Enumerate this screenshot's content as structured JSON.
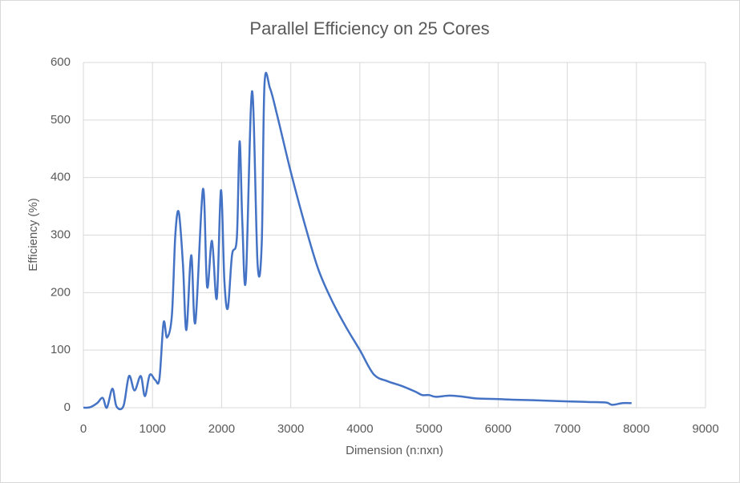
{
  "chart_data": {
    "type": "line",
    "title": "Parallel Efficiency on 25 Cores",
    "x_label": "Dimension (n:nxn)",
    "y_label": "Efficiency (%)",
    "color": "#4472c4",
    "grid": true,
    "smooth": true,
    "x": [
      0,
      100,
      200,
      280,
      340,
      420,
      480,
      580,
      660,
      740,
      830,
      890,
      960,
      1040,
      1100,
      1160,
      1210,
      1280,
      1330,
      1380,
      1440,
      1490,
      1560,
      1620,
      1730,
      1790,
      1860,
      1930,
      1990,
      2040,
      2090,
      2150,
      2220,
      2260,
      2300,
      2350,
      2440,
      2520,
      2580,
      2620,
      2700,
      2800,
      3000,
      3200,
      3400,
      3600,
      3800,
      4000,
      4200,
      4400,
      4600,
      4800,
      4900,
      5000,
      5100,
      5300,
      5500,
      5700,
      6000,
      6200,
      6500,
      7000,
      7300,
      7560,
      7650,
      7800,
      7930
    ],
    "values": [
      0,
      1,
      8,
      17,
      0,
      33,
      2,
      3,
      55,
      30,
      55,
      20,
      57,
      48,
      50,
      148,
      122,
      160,
      300,
      340,
      250,
      135,
      265,
      148,
      380,
      210,
      290,
      190,
      378,
      220,
      173,
      265,
      295,
      463,
      320,
      222,
      550,
      250,
      285,
      562,
      555,
      510,
      410,
      320,
      240,
      185,
      140,
      100,
      58,
      46,
      38,
      28,
      22,
      22,
      19,
      21,
      19,
      16,
      15,
      14,
      13,
      11,
      10,
      9,
      5,
      8,
      8
    ],
    "xlim": [
      0,
      9000
    ],
    "xticks": [
      0,
      1000,
      2000,
      3000,
      4000,
      5000,
      6000,
      7000,
      8000,
      9000
    ],
    "ylim": [
      0,
      600
    ],
    "yticks": [
      0,
      100,
      200,
      300,
      400,
      500,
      600
    ]
  }
}
